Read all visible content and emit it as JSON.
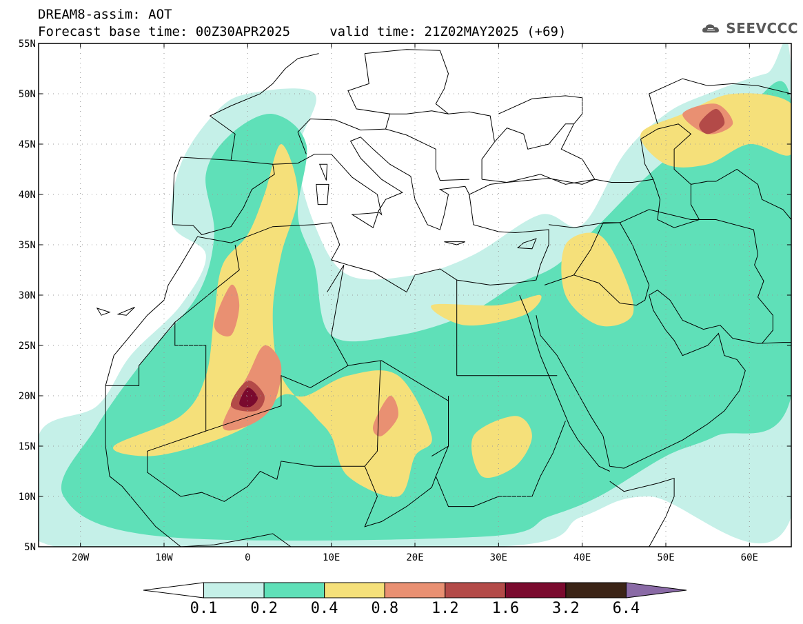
{
  "header": {
    "line1": "DREAM8-assim: AOT",
    "line2": "Forecast base time: 00Z30APR2025     valid time: 21Z02MAY2025 (+69)"
  },
  "logo": {
    "text": "SEEVCCC",
    "icon": "cloud-icon"
  },
  "map": {
    "lon_range": [
      -25,
      65
    ],
    "lat_range": [
      5,
      55
    ],
    "lat_ticks": [
      {
        "value": 55,
        "label": "55N"
      },
      {
        "value": 50,
        "label": "50N"
      },
      {
        "value": 45,
        "label": "45N"
      },
      {
        "value": 40,
        "label": "40N"
      },
      {
        "value": 35,
        "label": "35N"
      },
      {
        "value": 30,
        "label": "30N"
      },
      {
        "value": 25,
        "label": "25N"
      },
      {
        "value": 20,
        "label": "20N"
      },
      {
        "value": 15,
        "label": "15N"
      },
      {
        "value": 10,
        "label": "10N"
      },
      {
        "value": 5,
        "label": "5N"
      }
    ],
    "lon_ticks": [
      {
        "value": -20,
        "label": "20W"
      },
      {
        "value": -10,
        "label": "10W"
      },
      {
        "value": 0,
        "label": "0"
      },
      {
        "value": 10,
        "label": "10E"
      },
      {
        "value": 20,
        "label": "20E"
      },
      {
        "value": 30,
        "label": "30E"
      },
      {
        "value": 40,
        "label": "40E"
      },
      {
        "value": 50,
        "label": "50E"
      },
      {
        "value": 60,
        "label": "60E"
      }
    ],
    "grid": true
  },
  "colorbar": {
    "colors": [
      "#ffffff",
      "#c5f0e8",
      "#5fe0b8",
      "#f5e07a",
      "#e99072",
      "#b34a48",
      "#7a0a2e",
      "#3b2416",
      "#8a6aa6"
    ],
    "labels": [
      "0.1",
      "0.2",
      "0.4",
      "0.8",
      "1.2",
      "1.6",
      "3.2",
      "6.4"
    ]
  },
  "aot_regions": [
    {
      "level": 1,
      "color": "#c5f0e8",
      "pts": [
        [
          -25,
          16
        ],
        [
          -18,
          19
        ],
        [
          -14,
          24
        ],
        [
          -8,
          29
        ],
        [
          -5,
          34
        ],
        [
          -9,
          37
        ],
        [
          -8,
          43
        ],
        [
          -4,
          48
        ],
        [
          0,
          50
        ],
        [
          8,
          50
        ],
        [
          6,
          44
        ],
        [
          8,
          37
        ],
        [
          12,
          32
        ],
        [
          20,
          32
        ],
        [
          27,
          34
        ],
        [
          35,
          38
        ],
        [
          40,
          37
        ],
        [
          45,
          44
        ],
        [
          50,
          48
        ],
        [
          55,
          50
        ],
        [
          62,
          52
        ],
        [
          65,
          52
        ],
        [
          65,
          8
        ],
        [
          48,
          10
        ],
        [
          40,
          8
        ],
        [
          30,
          5
        ],
        [
          -23,
          5
        ]
      ]
    },
    {
      "level": 2,
      "color": "#5fe0b8",
      "pts": [
        [
          -22,
          10
        ],
        [
          -18,
          17
        ],
        [
          -12,
          24
        ],
        [
          -6,
          30
        ],
        [
          -4,
          36
        ],
        [
          -5,
          42
        ],
        [
          -2,
          46
        ],
        [
          3,
          48
        ],
        [
          7,
          45
        ],
        [
          6,
          38
        ],
        [
          8,
          33
        ],
        [
          10,
          26
        ],
        [
          18,
          26
        ],
        [
          26,
          28
        ],
        [
          32,
          31
        ],
        [
          37,
          33
        ],
        [
          42,
          37
        ],
        [
          48,
          42
        ],
        [
          54,
          46
        ],
        [
          60,
          49
        ],
        [
          65,
          49
        ],
        [
          65,
          20
        ],
        [
          56,
          16
        ],
        [
          50,
          14
        ],
        [
          42,
          10
        ],
        [
          36,
          8
        ],
        [
          28,
          6
        ],
        [
          -10,
          6
        ]
      ]
    },
    {
      "level": 3,
      "color": "#f5e07a",
      "pts": [
        [
          -16,
          15
        ],
        [
          -8,
          18
        ],
        [
          -5,
          22
        ],
        [
          -4,
          28
        ],
        [
          -3,
          33
        ],
        [
          0,
          36
        ],
        [
          2,
          40
        ],
        [
          4,
          45
        ],
        [
          6,
          40
        ],
        [
          4,
          34
        ],
        [
          3,
          28
        ],
        [
          4,
          22
        ],
        [
          8,
          18
        ],
        [
          10,
          16
        ],
        [
          12,
          12
        ],
        [
          18,
          10
        ],
        [
          20,
          14
        ],
        [
          22,
          16
        ],
        [
          18,
          22
        ],
        [
          12,
          22
        ],
        [
          7,
          20
        ],
        [
          4,
          20
        ],
        [
          0,
          17
        ],
        [
          -6,
          15
        ],
        [
          -12,
          14
        ]
      ]
    },
    {
      "level": 3,
      "color": "#f5e07a",
      "pts": [
        [
          38,
          35
        ],
        [
          42,
          36
        ],
        [
          45,
          32
        ],
        [
          46,
          28
        ],
        [
          42,
          27
        ],
        [
          38,
          30
        ]
      ]
    },
    {
      "level": 3,
      "color": "#f5e07a",
      "pts": [
        [
          47,
          46
        ],
        [
          52,
          48
        ],
        [
          58,
          50
        ],
        [
          65,
          49
        ],
        [
          65,
          44
        ],
        [
          60,
          45
        ],
        [
          55,
          43
        ],
        [
          50,
          43
        ]
      ]
    },
    {
      "level": 3,
      "color": "#f5e07a",
      "pts": [
        [
          27,
          16
        ],
        [
          32,
          18
        ],
        [
          34,
          16
        ],
        [
          32,
          13
        ],
        [
          28,
          12
        ]
      ]
    },
    {
      "level": 3,
      "color": "#f5e07a",
      "pts": [
        [
          22,
          29
        ],
        [
          30,
          29
        ],
        [
          35,
          30
        ],
        [
          33,
          28
        ],
        [
          26,
          27
        ]
      ]
    },
    {
      "level": 4,
      "color": "#e99072",
      "pts": [
        [
          -3,
          17
        ],
        [
          0,
          22
        ],
        [
          2,
          25
        ],
        [
          4,
          23
        ],
        [
          3,
          19
        ],
        [
          0,
          17
        ]
      ]
    },
    {
      "level": 4,
      "color": "#e99072",
      "pts": [
        [
          15,
          17
        ],
        [
          17,
          20
        ],
        [
          18,
          18
        ],
        [
          16,
          16
        ]
      ]
    },
    {
      "level": 4,
      "color": "#e99072",
      "pts": [
        [
          -4,
          27
        ],
        [
          -2,
          31
        ],
        [
          -1,
          29
        ],
        [
          -2,
          26
        ]
      ]
    },
    {
      "level": 4,
      "color": "#e99072",
      "pts": [
        [
          52,
          48
        ],
        [
          56,
          49
        ],
        [
          58,
          47
        ],
        [
          55,
          46
        ]
      ]
    },
    {
      "level": 5,
      "color": "#b34a48",
      "pts": [
        [
          -2,
          19
        ],
        [
          0,
          21.5
        ],
        [
          2,
          20
        ],
        [
          1,
          18.5
        ]
      ]
    },
    {
      "level": 5,
      "color": "#b34a48",
      "pts": [
        [
          54,
          47
        ],
        [
          56,
          48.5
        ],
        [
          57,
          47
        ],
        [
          55,
          46
        ]
      ]
    },
    {
      "level": 6,
      "color": "#7a0a2e",
      "pts": [
        [
          -1,
          19.2
        ],
        [
          0,
          20.8
        ],
        [
          1.2,
          19.8
        ],
        [
          0.3,
          18.9
        ]
      ]
    }
  ]
}
